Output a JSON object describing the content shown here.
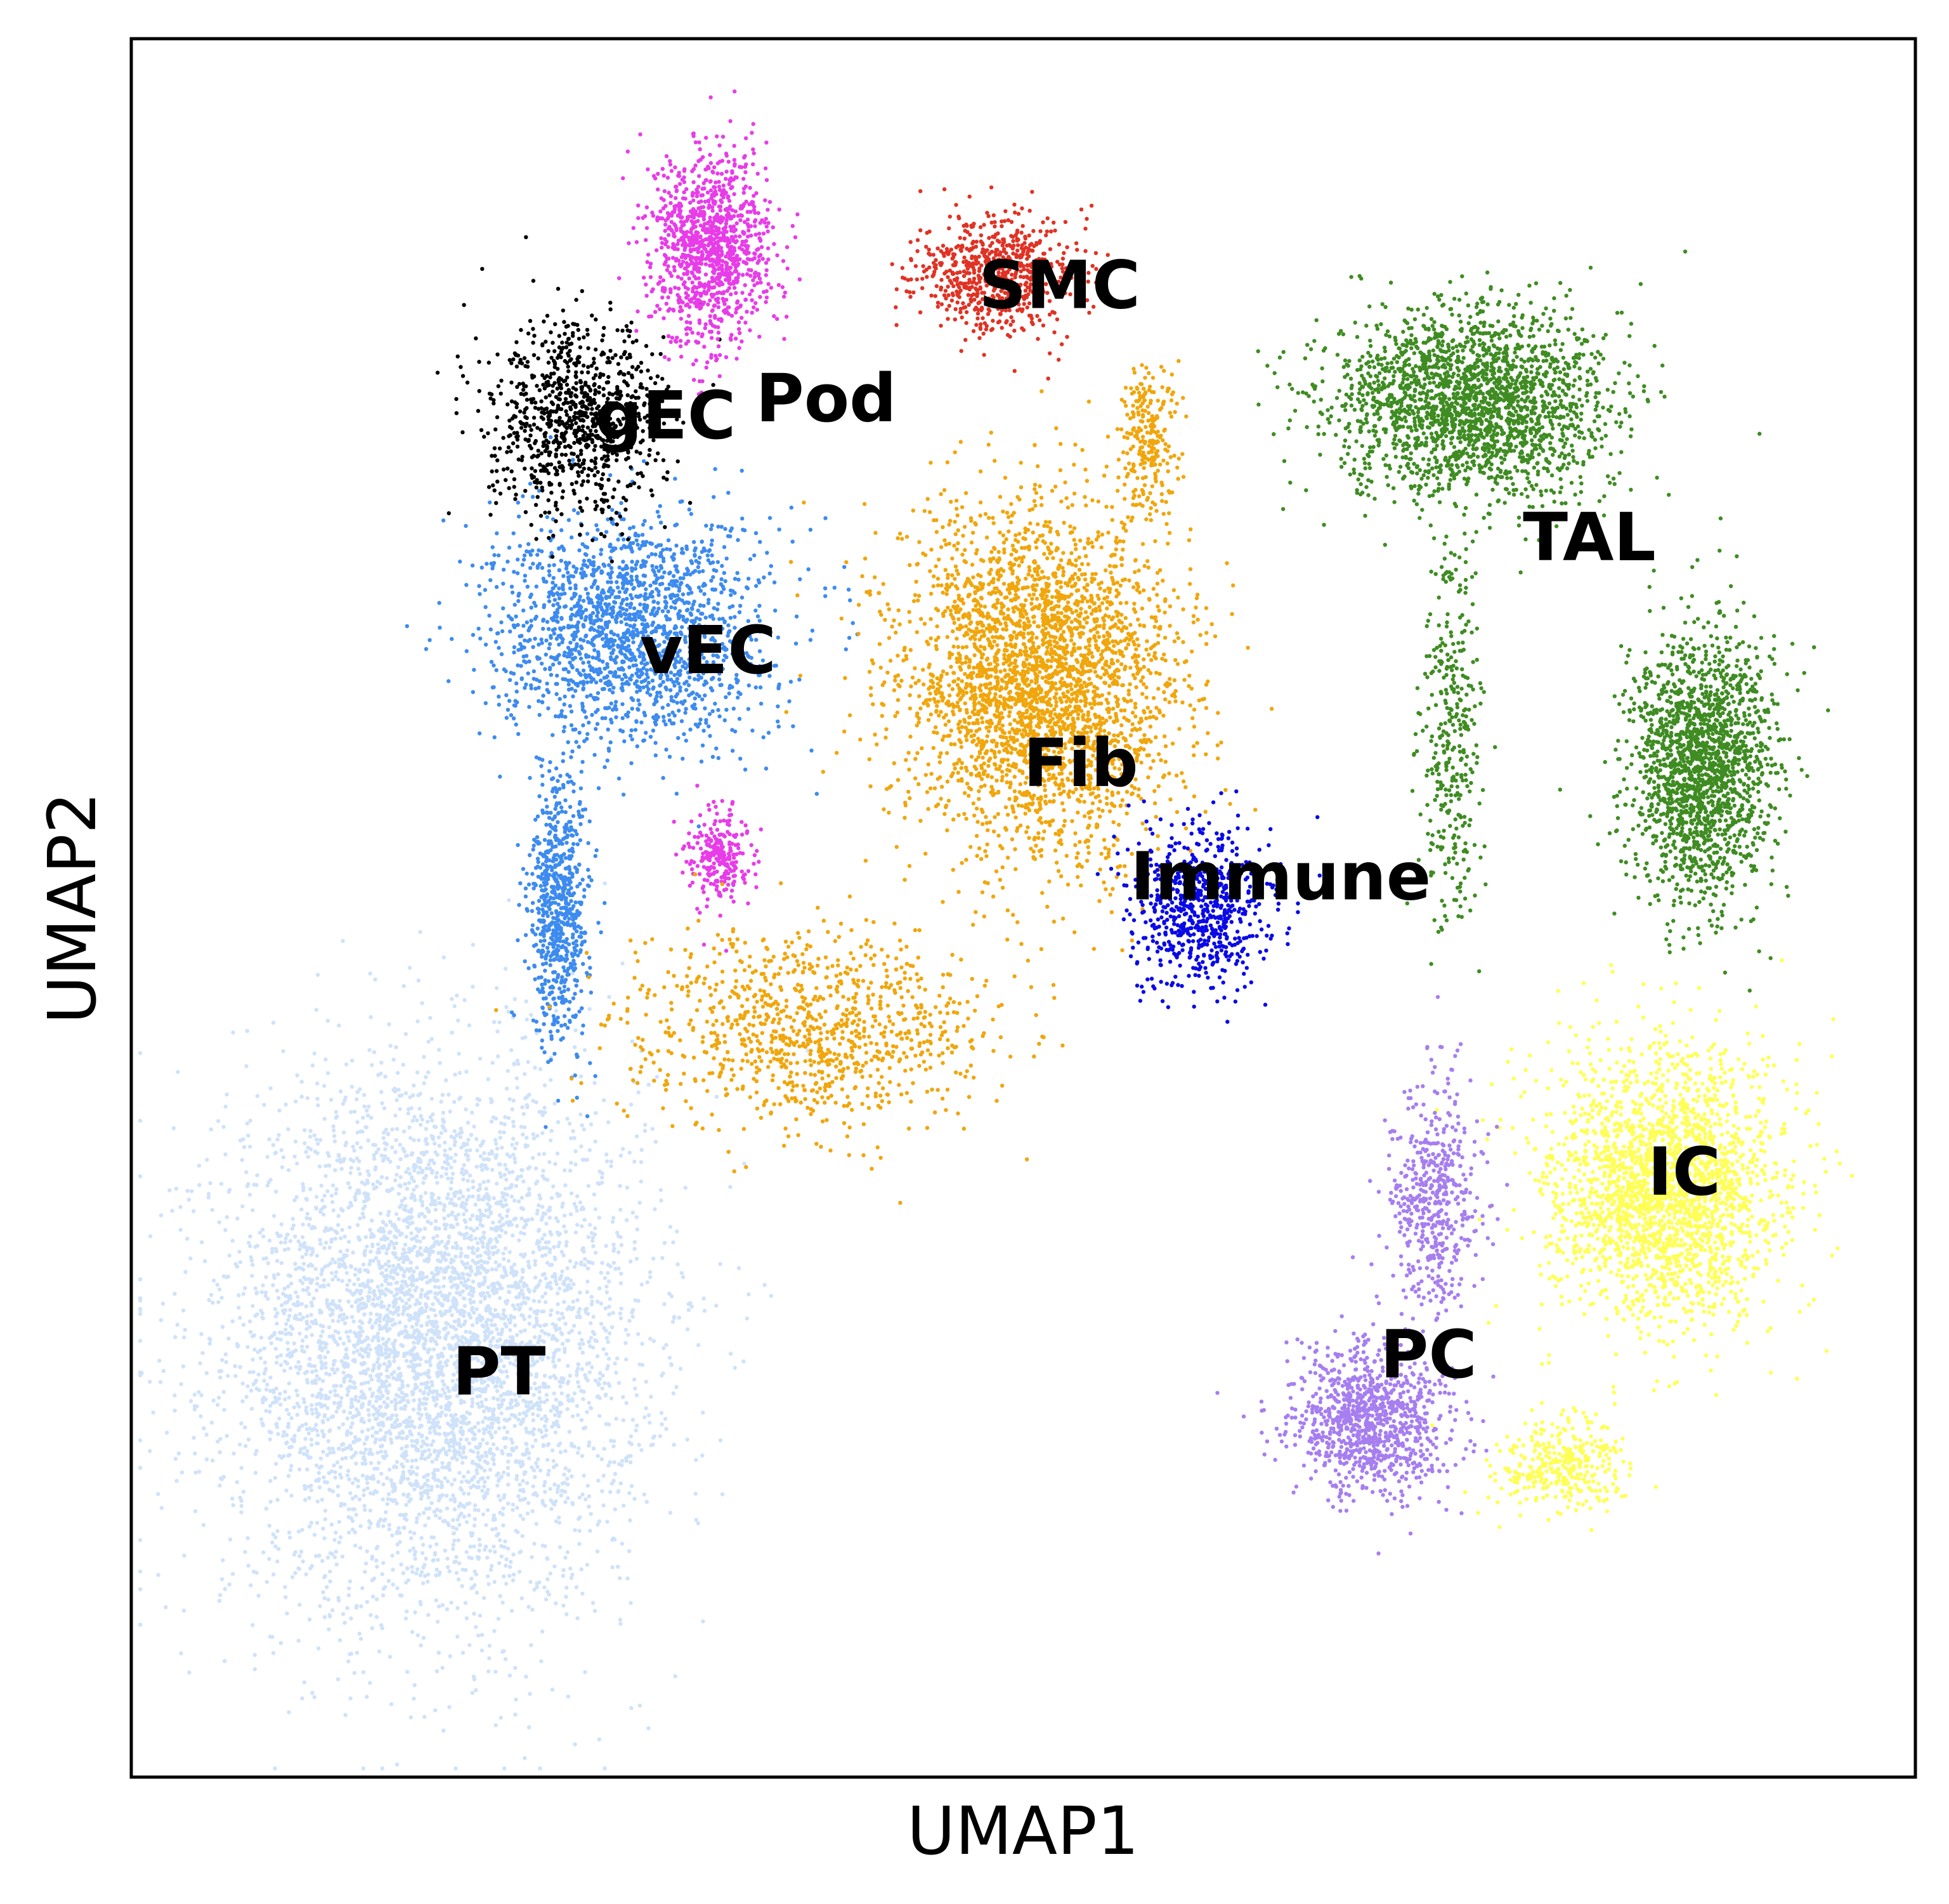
{
  "chart_data": {
    "type": "scatter",
    "title": "",
    "xlabel": "UMAP1",
    "ylabel": "UMAP2",
    "xlim": [
      0,
      100
    ],
    "ylim": [
      0,
      100
    ],
    "ticks": "none",
    "grid": false,
    "legend": "on data",
    "series": [
      {
        "name": "PT",
        "color": "#cfe2fa",
        "label_at": [
          18,
          22
        ],
        "clusters": [
          {
            "center": [
              17,
              25
            ],
            "spread": [
              10.5,
              14
            ],
            "n": 5200
          }
        ]
      },
      {
        "name": "vEC",
        "color": "#3d8bef",
        "label_at": [
          28.5,
          63.5
        ],
        "clusters": [
          {
            "center": [
              28,
              66
            ],
            "spread": [
              7,
              6
            ],
            "n": 1800
          },
          {
            "center": [
              24,
              50
            ],
            "spread": [
              1.5,
              7
            ],
            "n": 700
          }
        ]
      },
      {
        "name": "gEC",
        "color": "#000000",
        "label_at": [
          26,
          77
        ],
        "clusters": [
          {
            "center": [
              25,
              78
            ],
            "spread": [
              4.5,
              5
            ],
            "n": 900
          }
        ]
      },
      {
        "name": "Pod",
        "color": "#e83ce8",
        "label_at": [
          35,
          78
        ],
        "clusters": [
          {
            "center": [
              32.5,
              88
            ],
            "spread": [
              3,
              5
            ],
            "n": 1100
          },
          {
            "center": [
              33,
              53
            ],
            "spread": [
              1.5,
              2.5
            ],
            "n": 250
          }
        ]
      },
      {
        "name": "SMC",
        "color": "#e03224",
        "label_at": [
          47.5,
          84.5
        ],
        "clusters": [
          {
            "center": [
              48.5,
              86.5
            ],
            "spread": [
              4,
              3
            ],
            "n": 700
          }
        ]
      },
      {
        "name": "Fib",
        "color": "#f0a60c",
        "label_at": [
          50,
          57
        ],
        "clusters": [
          {
            "center": [
              51,
              63
            ],
            "spread": [
              7,
              9
            ],
            "n": 3200
          },
          {
            "center": [
              38,
              43
            ],
            "spread": [
              9,
              5
            ],
            "n": 1000
          },
          {
            "center": [
              57,
              77
            ],
            "spread": [
              1.5,
              4
            ],
            "n": 250
          }
        ]
      },
      {
        "name": "Immune",
        "color": "#0a0ae6",
        "label_at": [
          56,
          50.5
        ],
        "clusters": [
          {
            "center": [
              60,
              50
            ],
            "spread": [
              3.5,
              4
            ],
            "n": 700
          }
        ]
      },
      {
        "name": "TAL",
        "color": "#3f8c22",
        "label_at": [
          78,
          70
        ],
        "clusters": [
          {
            "center": [
              75,
              79
            ],
            "spread": [
              7,
              5
            ],
            "n": 2200
          },
          {
            "center": [
              88,
              58
            ],
            "spread": [
              3.5,
              7
            ],
            "n": 1800
          },
          {
            "center": [
              74,
              60
            ],
            "spread": [
              1.5,
              10
            ],
            "n": 350
          }
        ]
      },
      {
        "name": "IC",
        "color": "#ffff55",
        "label_at": [
          85,
          33.5
        ],
        "clusters": [
          {
            "center": [
              86,
              34
            ],
            "spread": [
              6,
              7
            ],
            "n": 2300
          },
          {
            "center": [
              80,
              18
            ],
            "spread": [
              3.5,
              2.5
            ],
            "n": 350
          }
        ]
      },
      {
        "name": "PC",
        "color": "#a67ef0",
        "label_at": [
          70,
          23
        ],
        "clusters": [
          {
            "center": [
              69.5,
              20.5
            ],
            "spread": [
              3.8,
              4
            ],
            "n": 1000
          },
          {
            "center": [
              73,
              33
            ],
            "spread": [
              2.2,
              6
            ],
            "n": 500
          }
        ]
      }
    ]
  }
}
